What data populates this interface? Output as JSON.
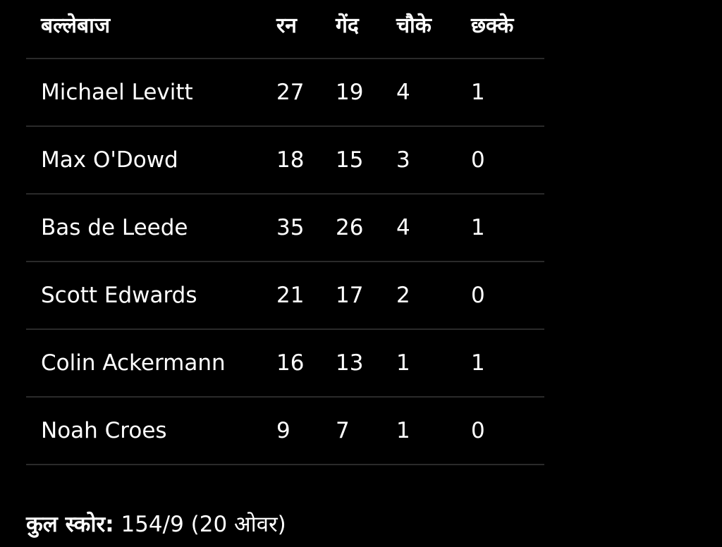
{
  "table": {
    "headers": [
      "बल्लेबाज",
      "रन",
      "गेंद",
      "चौके",
      "छक्के"
    ],
    "rows": [
      [
        "Michael Levitt",
        "27",
        "19",
        "4",
        "1"
      ],
      [
        "Max O'Dowd",
        "18",
        "15",
        "3",
        "0"
      ],
      [
        "Bas de Leede",
        "35",
        "26",
        "4",
        "1"
      ],
      [
        "Scott Edwards",
        "21",
        "17",
        "2",
        "0"
      ],
      [
        "Colin Ackermann",
        "16",
        "13",
        "1",
        "1"
      ],
      [
        "Noah Croes",
        "9",
        "7",
        "1",
        "0"
      ]
    ]
  },
  "total": {
    "label": "कुल स्कोर:",
    "value": "154/9 (20 ओवर)"
  }
}
